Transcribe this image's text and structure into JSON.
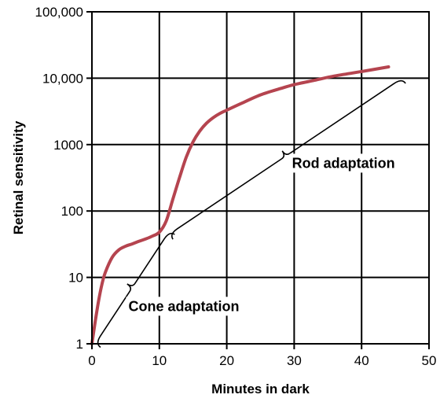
{
  "chart_data": {
    "type": "line",
    "title": "",
    "xlabel": "Minutes in dark",
    "ylabel": "Retinal sensitivity",
    "xlim": [
      0,
      50
    ],
    "ylim": [
      1,
      100000
    ],
    "y_scale": "log",
    "grid": true,
    "x_ticks": [
      "0",
      "10",
      "20",
      "30",
      "40",
      "50"
    ],
    "y_ticks": [
      "1",
      "10",
      "100",
      "1000",
      "10,000",
      "100,000"
    ],
    "series": [
      {
        "color": "#b5444f",
        "x": [
          0,
          0.5,
          1,
          1.5,
          2,
          3,
          4,
          5,
          6,
          7,
          8,
          9,
          10,
          11,
          12,
          13,
          14,
          15,
          16,
          17,
          18,
          19,
          20,
          22,
          25,
          28,
          30,
          33,
          36,
          40,
          44
        ],
        "y": [
          1,
          2.2,
          4.5,
          8,
          12,
          20,
          26,
          29.5,
          32,
          35,
          38,
          42,
          48,
          70,
          150,
          320,
          650,
          1100,
          1600,
          2100,
          2550,
          2950,
          3300,
          4100,
          5600,
          7000,
          8000,
          9300,
          10800,
          12600,
          14800
        ]
      }
    ],
    "annotations": [
      {
        "text": "Rod adaptation",
        "bracket_from": [
          11.5,
          45
        ],
        "bracket_to": [
          46,
          10000
        ]
      },
      {
        "text": "Cone adaptation",
        "bracket_from": [
          0.5,
          1
        ],
        "bracket_to": [
          11.5,
          50
        ]
      }
    ]
  }
}
